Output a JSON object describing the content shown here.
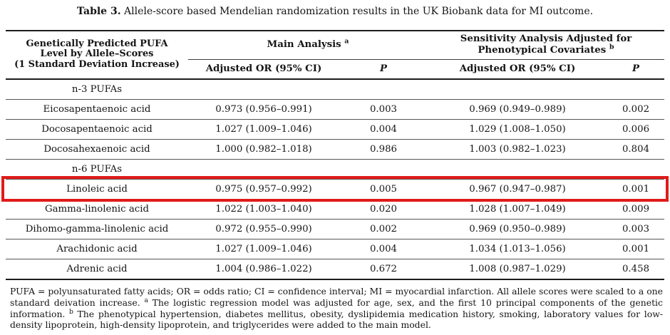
{
  "title": {
    "label": "Table 3.",
    "text": "Allele-score based Mendelian randomization results in the UK Biobank data for MI outcome."
  },
  "table": {
    "col1_header_lines": [
      "Genetically Predicted PUFA",
      "Level by Allele–Scores",
      "(1 Standard Deviation Increase)"
    ],
    "group_headers": {
      "main": {
        "label": "Main Analysis",
        "sup": "a"
      },
      "sensitivity": {
        "label": "Sensitivity Analysis Adjusted for Phenotypical Covariates",
        "sup": "b"
      }
    },
    "sub_headers": {
      "or_ci_main": "Adjusted OR (95% CI)",
      "p_main": "P",
      "or_ci_sens": "Adjusted OR (95% CI)",
      "p_sens": "P"
    },
    "rows": [
      {
        "type": "section",
        "name": "n-3 PUFAs"
      },
      {
        "name": "Eicosapentaenoic acid",
        "main_or": "0.973 (0.956–0.991)",
        "main_p": "0.003",
        "sens_or": "0.969 (0.949–0.989)",
        "sens_p": "0.002"
      },
      {
        "name": "Docosapentaenoic acid",
        "main_or": "1.027 (1.009–1.046)",
        "main_p": "0.004",
        "sens_or": "1.029 (1.008–1.050)",
        "sens_p": "0.006"
      },
      {
        "name": "Docosahexaenoic acid",
        "main_or": "1.000 (0.982–1.018)",
        "main_p": "0.986",
        "sens_or": "1.003 (0.982–1.023)",
        "sens_p": "0.804"
      },
      {
        "type": "section",
        "name": "n-6 PUFAs"
      },
      {
        "name": "Linoleic acid",
        "main_or": "0.975 (0.957–0.992)",
        "main_p": "0.005",
        "sens_or": "0.967 (0.947–0.987)",
        "sens_p": "0.001",
        "highlighted": true
      },
      {
        "name": "Gamma-linolenic acid",
        "main_or": "1.022 (1.003–1.040)",
        "main_p": "0.020",
        "sens_or": "1.028 (1.007–1.049)",
        "sens_p": "0.009"
      },
      {
        "name": "Dihomo-gamma-linolenic acid",
        "main_or": "0.972 (0.955–0.990)",
        "main_p": "0.002",
        "sens_or": "0.969 (0.950–0.989)",
        "sens_p": "0.003"
      },
      {
        "name": "Arachidonic acid",
        "main_or": "1.027 (1.009–1.046)",
        "main_p": "0.004",
        "sens_or": "1.034 (1.013–1.056)",
        "sens_p": "0.001"
      },
      {
        "name": "Adrenic acid",
        "main_or": "1.004 (0.986–1.022)",
        "main_p": "0.672",
        "sens_or": "1.008 (0.987–1.029)",
        "sens_p": "0.458"
      }
    ]
  },
  "footnote": {
    "seg1": "PUFA = polyunsaturated fatty acids; OR = odds ratio; CI = confidence interval; MI = myocardial infarction. All allele scores were scaled to a one standard deivation increase.",
    "sup_a": "a",
    "seg2": "The logistic regression model was adjusted for age, sex, and the first 10 principal components of the genetic information.",
    "sup_b": "b",
    "seg3": "The phenotypical hypertension, diabetes mellitus, obesity, dyslipidemia medication history, smoking, laboratory values for low-density lipoprotein, high-density lipoprotein, and triglycerides were added to the main model."
  },
  "colors": {
    "text": "#141414",
    "rule_thick": "#1c1c1c",
    "rule_thin": "#565656",
    "highlight_red": "#e01b1b"
  }
}
